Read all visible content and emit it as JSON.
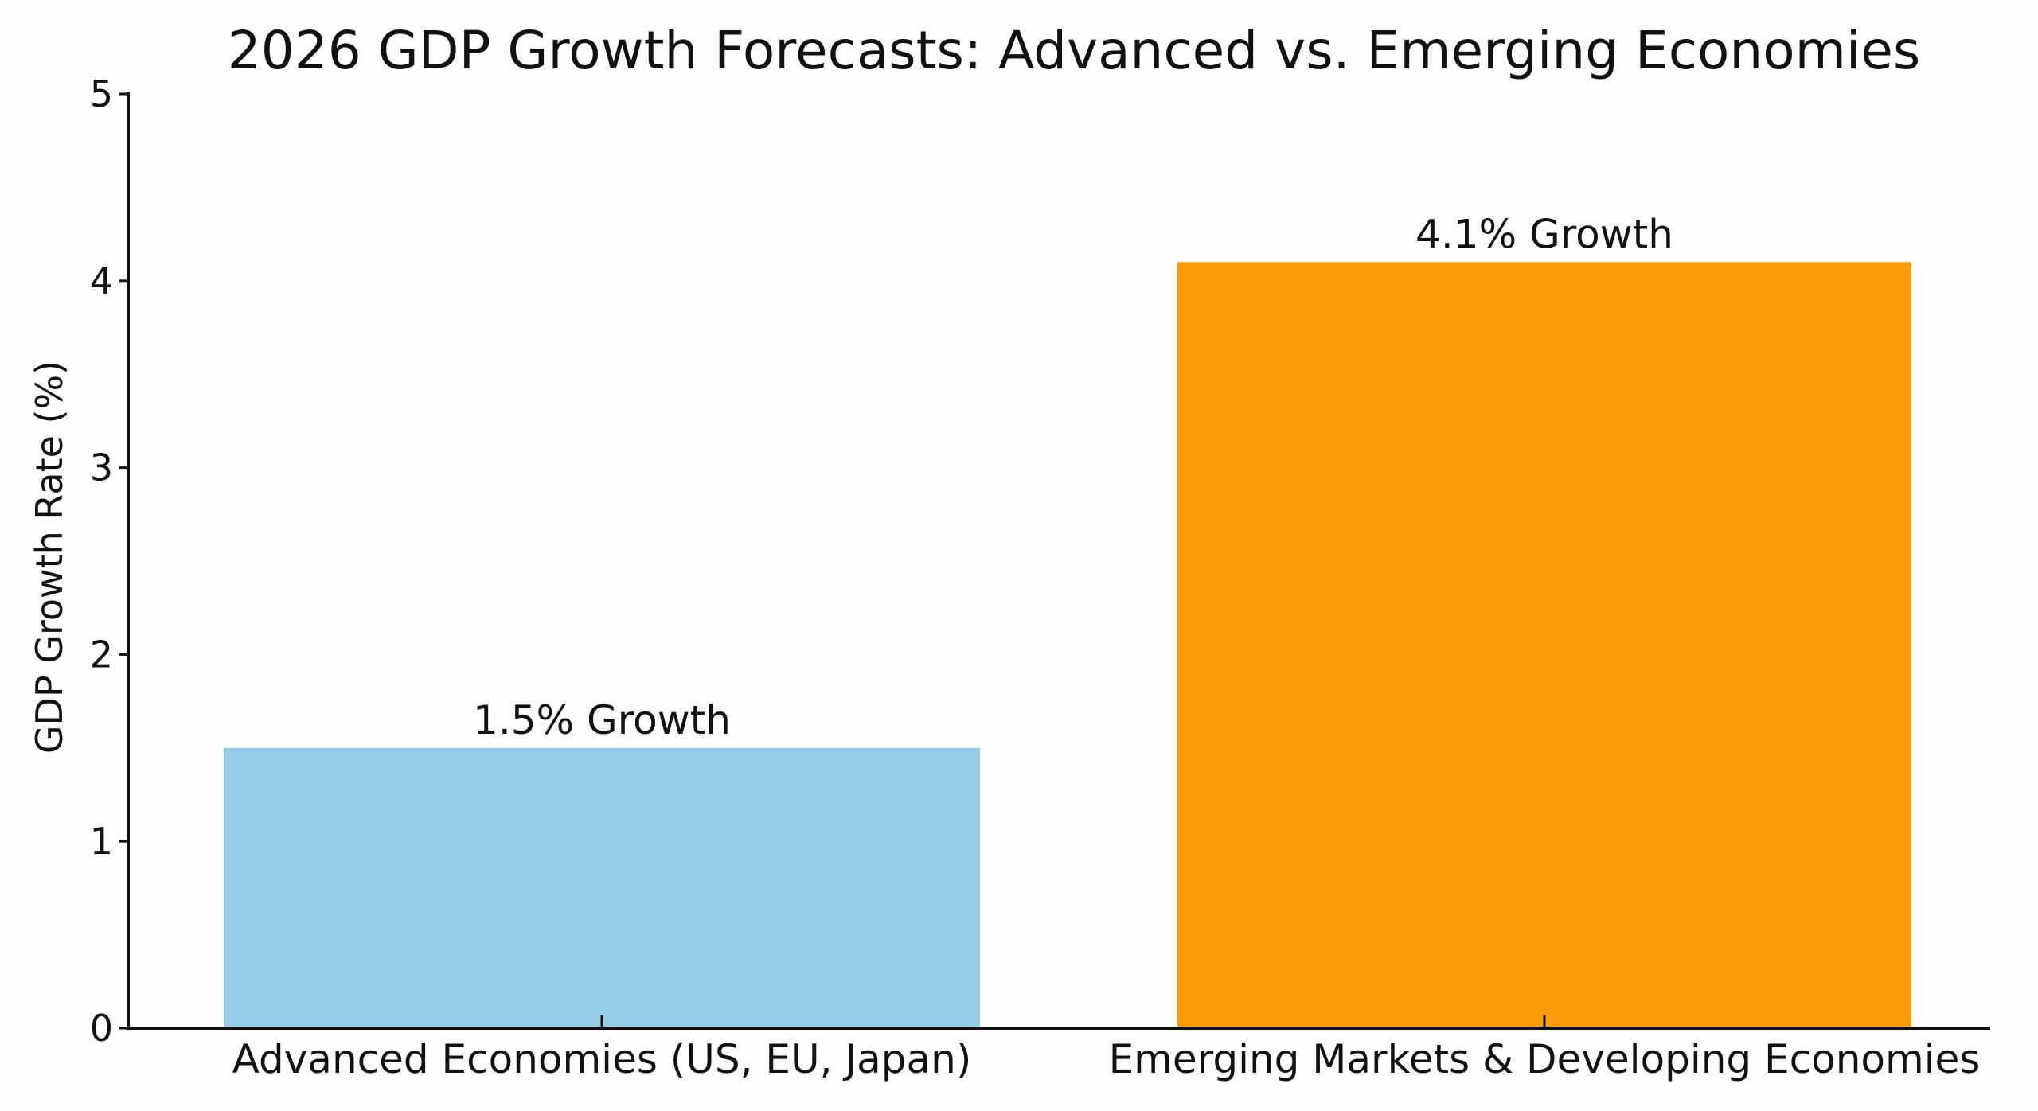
{
  "chart_data": {
    "type": "bar",
    "title": "2026 GDP Growth Forecasts: Advanced vs. Emerging Economies",
    "xlabel": "",
    "ylabel": "GDP Growth Rate (%)",
    "ylim": [
      0,
      5
    ],
    "yticks": [
      "0",
      "1",
      "2",
      "3",
      "4",
      "5"
    ],
    "grid": false,
    "categories": [
      "Advanced Economies (US, EU, Japan)",
      "Emerging Markets & Developing Economies"
    ],
    "values": [
      1.5,
      4.1
    ],
    "data_labels": [
      "1.5% Growth",
      "4.1% Growth"
    ],
    "colors": [
      "#95cde8",
      "#fb9d0b"
    ]
  }
}
